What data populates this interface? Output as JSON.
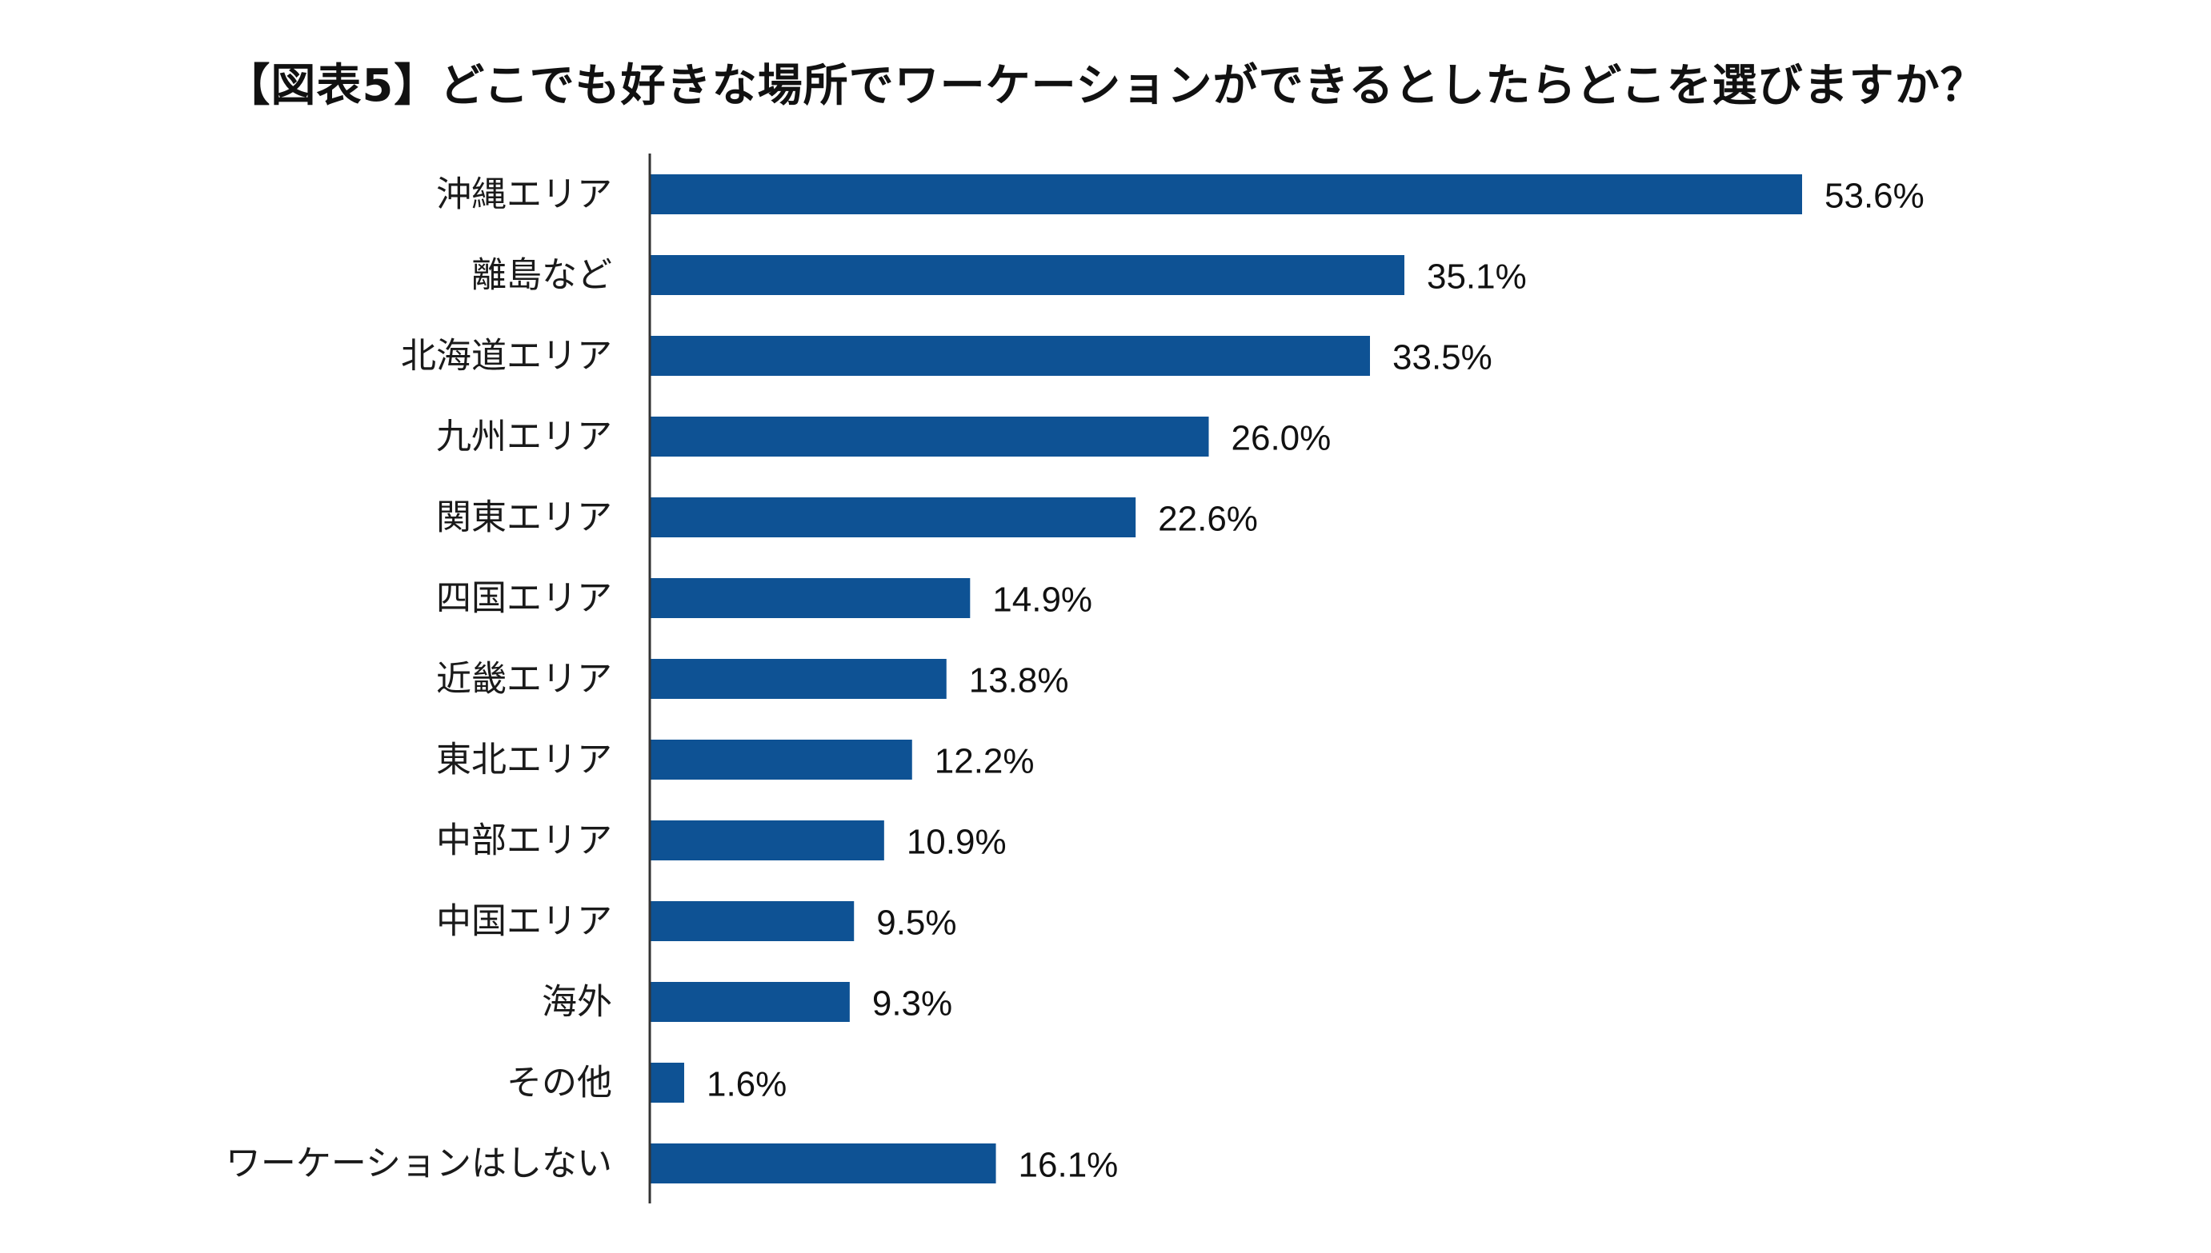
{
  "chart_data": {
    "type": "bar",
    "orientation": "horizontal",
    "title": "【図表5】どこでも好きな場所でワーケーションができるとしたらどこを選びますか？",
    "categories": [
      "沖縄エリア",
      "離島など",
      "北海道エリア",
      "九州エリア",
      "関東エリア",
      "四国エリア",
      "近畿エリア",
      "東北エリア",
      "中部エリア",
      "中国エリア",
      "海外",
      "その他",
      "ワーケーションはしない"
    ],
    "values": [
      53.6,
      35.1,
      33.5,
      26.0,
      22.6,
      14.9,
      13.8,
      12.2,
      10.9,
      9.5,
      9.3,
      1.6,
      16.1
    ],
    "value_labels": [
      "53.6%",
      "35.1%",
      "33.5%",
      "26.0%",
      "22.6%",
      "14.9%",
      "13.8%",
      "12.2%",
      "10.9%",
      "9.5%",
      "9.3%",
      "1.6%",
      "16.1%"
    ],
    "unit": "%",
    "xlim": [
      0,
      53.6
    ],
    "grid": false,
    "legend": "none",
    "bar_color": "#0e5294",
    "axis_color": "#333333"
  }
}
